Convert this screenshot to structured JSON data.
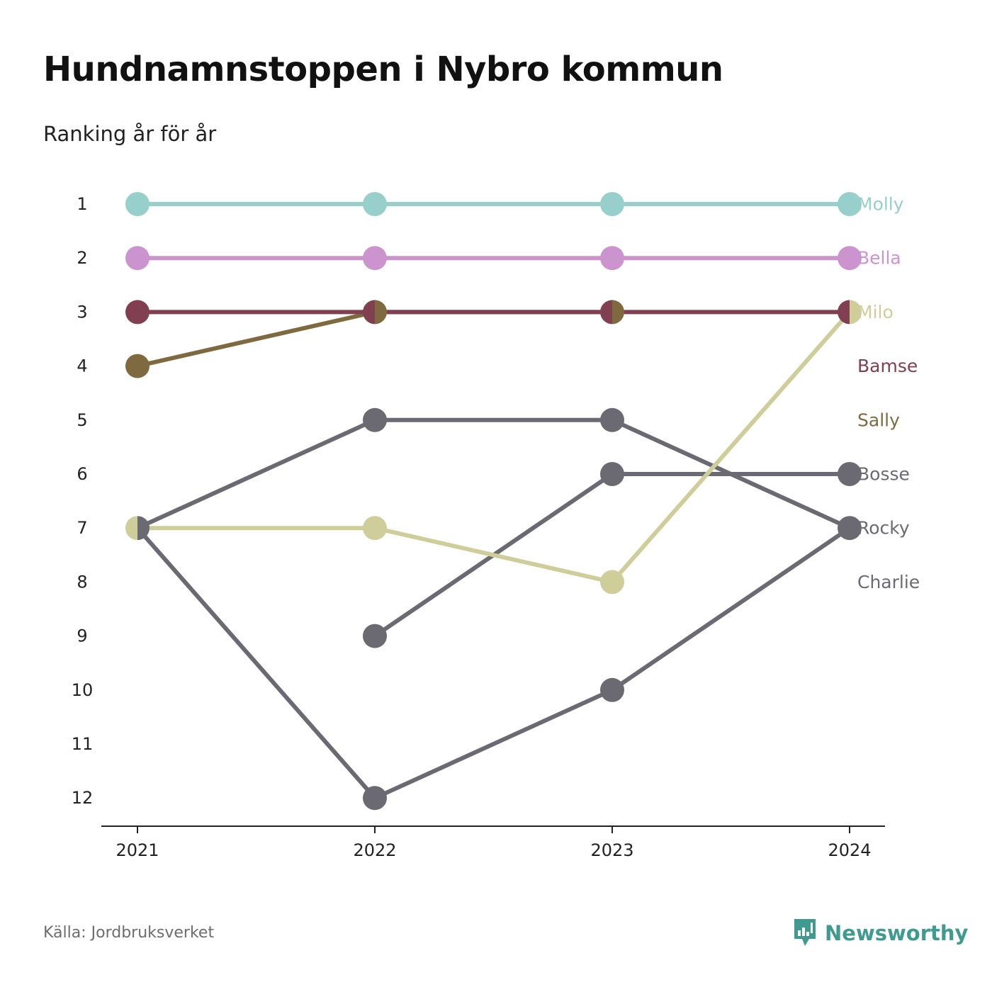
{
  "title": "Hundnamnstoppen i Nybro kommun",
  "subtitle": "Ranking år för år",
  "source": "Källa: Jordbruksverket",
  "brand": {
    "name": "Newsworthy",
    "icon": "newsworthy-logo-icon",
    "color": "#3f9a8f"
  },
  "chart_data": {
    "type": "line",
    "x": [
      "2021",
      "2022",
      "2023",
      "2024"
    ],
    "y_ticks": [
      1,
      2,
      3,
      4,
      5,
      6,
      7,
      8,
      9,
      10,
      11,
      12
    ],
    "ylim": [
      1,
      12
    ],
    "y_inverted": true,
    "grid": false,
    "legend": "right end labels",
    "label_ranks": {
      "Molly": 1,
      "Bella": 2,
      "Milo": 3,
      "Bamse": 4,
      "Sally": 5,
      "Bosse": 6,
      "Rocky": 7,
      "Charlie": 8
    },
    "series": [
      {
        "name": "Charlie",
        "color": "#6b6a72",
        "values": [
          7,
          12,
          10,
          7
        ]
      },
      {
        "name": "Rocky",
        "color": "#6b6a72",
        "values": [
          7,
          5,
          5,
          7
        ]
      },
      {
        "name": "Bosse",
        "color": "#6b6a72",
        "values": [
          null,
          9,
          6,
          6
        ]
      },
      {
        "name": "Milo",
        "color": "#cfce9a",
        "values": [
          7,
          7,
          8,
          3
        ]
      },
      {
        "name": "Sally",
        "color": "#7f6a3f",
        "values": [
          4,
          3,
          3,
          null
        ]
      },
      {
        "name": "Bamse",
        "color": "#804052",
        "values": [
          3,
          3,
          3,
          3
        ]
      },
      {
        "name": "Bella",
        "color": "#cb94cf",
        "values": [
          2,
          2,
          2,
          2
        ]
      },
      {
        "name": "Molly",
        "color": "#96cfcc",
        "values": [
          1,
          1,
          1,
          1
        ]
      }
    ]
  }
}
